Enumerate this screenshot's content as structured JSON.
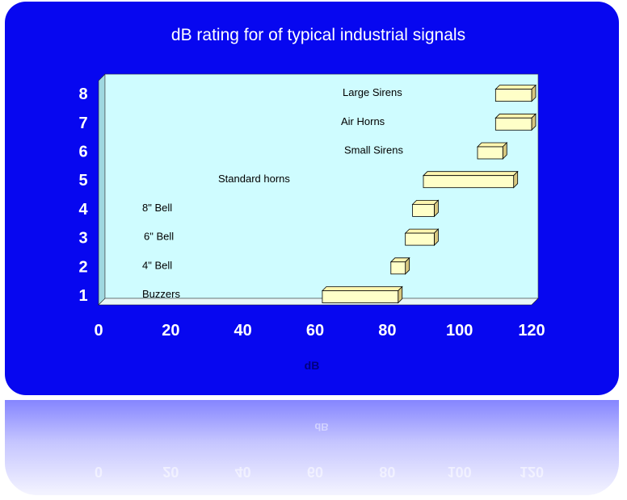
{
  "chart_data": {
    "type": "bar",
    "subtype": "floating-range-horizontal-3d",
    "title": "dB rating for of typical industrial signals",
    "xlabel": "dB",
    "ylabel": "",
    "xlim": [
      0,
      120
    ],
    "ylim": [
      0,
      8
    ],
    "x_ticks": [
      "0",
      "20",
      "40",
      "60",
      "80",
      "100",
      "120"
    ],
    "y_ticks": [
      "1",
      "2",
      "3",
      "4",
      "5",
      "6",
      "7",
      "8"
    ],
    "grid": false,
    "legend": "none",
    "bars": [
      {
        "category": "1",
        "label": "Buzzers",
        "start": 62,
        "end": 83
      },
      {
        "category": "2",
        "label": "4\" Bell",
        "start": 81,
        "end": 85
      },
      {
        "category": "3",
        "label": "6\" Bell",
        "start": 85,
        "end": 93
      },
      {
        "category": "4",
        "label": "8\" Bell",
        "start": 87,
        "end": 93
      },
      {
        "category": "5",
        "label": "Standard  horns",
        "start": 90,
        "end": 115
      },
      {
        "category": "6",
        "label": "Small Sirens",
        "start": 105,
        "end": 112
      },
      {
        "category": "7",
        "label": "Air Horns",
        "start": 110,
        "end": 120
      },
      {
        "category": "8",
        "label": "Large Sirens",
        "start": 110,
        "end": 120
      }
    ]
  },
  "colors": {
    "background": "#0707f0",
    "plot_area": "#cffcff",
    "bar_front": "#ffffc8",
    "bar_top": "#fff6b0",
    "bar_side": "#d8c880",
    "text": "#000000",
    "tick_text": "#ffffff",
    "axis_label": "#000080"
  }
}
